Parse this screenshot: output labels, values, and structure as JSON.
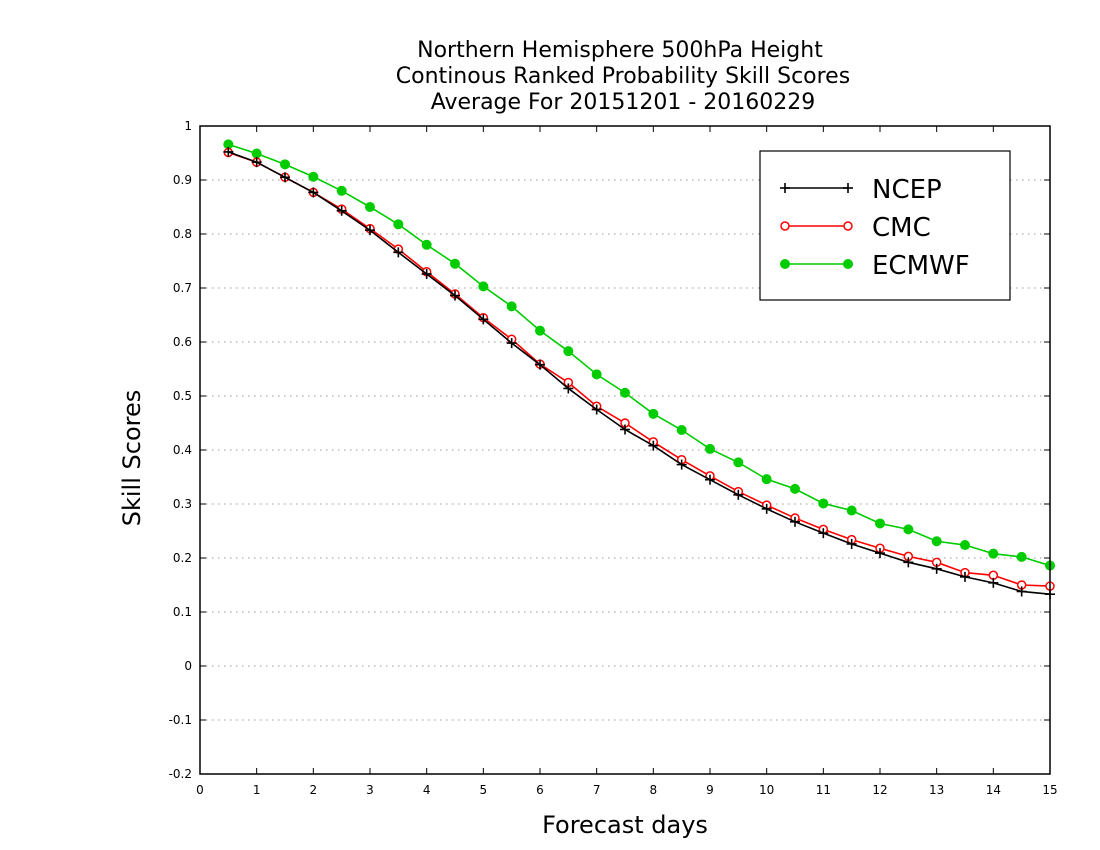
{
  "chart_data": {
    "type": "line",
    "title_lines": [
      "Northern Hemisphere 500hPa Height",
      "Continous Ranked Probability Skill Scores",
      "Average For 20151201 - 20160229"
    ],
    "xlabel": "Forecast days",
    "ylabel": "Skill Scores",
    "xlim": [
      0,
      15
    ],
    "ylim": [
      -0.2,
      1
    ],
    "x_ticks": [
      "0",
      "1",
      "2",
      "3",
      "4",
      "5",
      "6",
      "7",
      "8",
      "9",
      "10",
      "11",
      "12",
      "13",
      "14",
      "15"
    ],
    "y_ticks": [
      "-0.2",
      "-0.1",
      "0",
      "0.1",
      "0.2",
      "0.3",
      "0.4",
      "0.5",
      "0.6",
      "0.7",
      "0.8",
      "0.9",
      "1"
    ],
    "grid": true,
    "legend_position": "top-right",
    "x": [
      0.5,
      1,
      1.5,
      2,
      2.5,
      3,
      3.5,
      4,
      4.5,
      5,
      5.5,
      6,
      6.5,
      7,
      7.5,
      8,
      8.5,
      9,
      9.5,
      10,
      10.5,
      11,
      11.5,
      12,
      12.5,
      13,
      13.5,
      14,
      14.5,
      15
    ],
    "series": [
      {
        "name": "NCEP",
        "color": "#000000",
        "marker": "plus",
        "values": [
          0.952,
          0.933,
          0.905,
          0.877,
          0.843,
          0.807,
          0.766,
          0.726,
          0.686,
          0.642,
          0.598,
          0.558,
          0.514,
          0.475,
          0.438,
          0.408,
          0.373,
          0.345,
          0.317,
          0.291,
          0.267,
          0.246,
          0.226,
          0.209,
          0.192,
          0.18,
          0.165,
          0.154,
          0.138,
          0.133
        ]
      },
      {
        "name": "CMC",
        "color": "#ff0000",
        "marker": "open-circle",
        "values": [
          0.951,
          0.933,
          0.905,
          0.877,
          0.846,
          0.81,
          0.772,
          0.73,
          0.689,
          0.645,
          0.605,
          0.559,
          0.525,
          0.481,
          0.45,
          0.415,
          0.382,
          0.352,
          0.323,
          0.298,
          0.274,
          0.253,
          0.234,
          0.218,
          0.203,
          0.192,
          0.173,
          0.168,
          0.15,
          0.148
        ]
      },
      {
        "name": "ECMWF",
        "color": "#00cc00",
        "marker": "filled-circle",
        "values": [
          0.966,
          0.949,
          0.929,
          0.906,
          0.88,
          0.85,
          0.818,
          0.78,
          0.745,
          0.703,
          0.666,
          0.621,
          0.583,
          0.54,
          0.506,
          0.467,
          0.437,
          0.402,
          0.377,
          0.346,
          0.328,
          0.301,
          0.288,
          0.264,
          0.253,
          0.231,
          0.224,
          0.208,
          0.202,
          0.186
        ]
      }
    ]
  }
}
